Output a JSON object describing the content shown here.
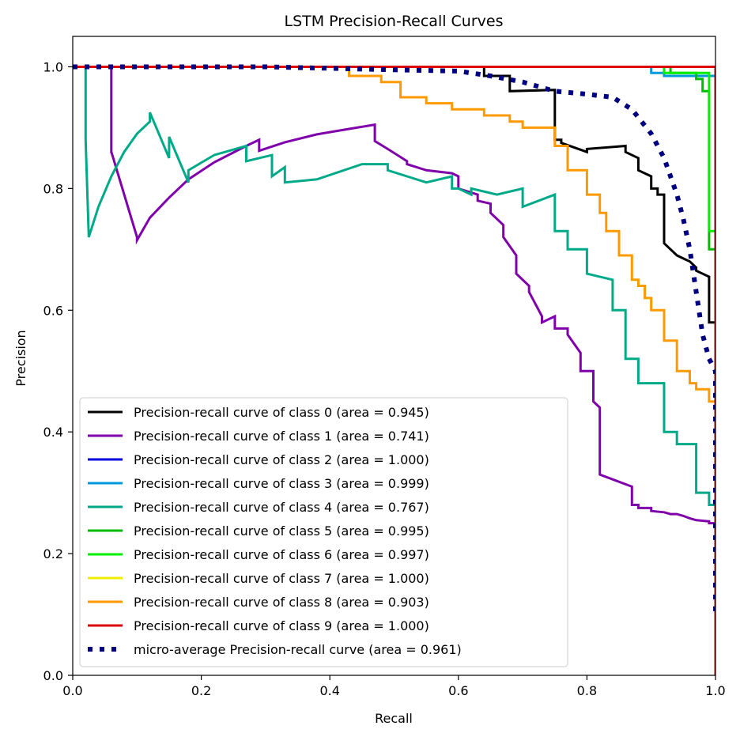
{
  "chart_data": {
    "type": "line",
    "title": "LSTM Precision-Recall Curves",
    "xlabel": "Recall",
    "ylabel": "Precision",
    "xlim": [
      0.0,
      1.0
    ],
    "ylim": [
      0.0,
      1.05
    ],
    "xticks": [
      0.0,
      0.2,
      0.4,
      0.6,
      0.8,
      1.0
    ],
    "xtick_labels": [
      "0.0",
      "0.2",
      "0.4",
      "0.6",
      "0.8",
      "1.0"
    ],
    "yticks": [
      0.0,
      0.2,
      0.4,
      0.6,
      0.8,
      1.0
    ],
    "ytick_labels": [
      "0.0",
      "0.2",
      "0.4",
      "0.6",
      "0.8",
      "1.0"
    ],
    "grid": false,
    "legend_position": "lower-left",
    "series": [
      {
        "name": "Precision-recall curve of class 0 (area = 0.945)",
        "color": "#000000",
        "style": "solid",
        "x": [
          0.0,
          0.64,
          0.64,
          0.68,
          0.68,
          0.75,
          0.75,
          0.76,
          0.76,
          0.8,
          0.8,
          0.86,
          0.86,
          0.88,
          0.88,
          0.9,
          0.9,
          0.91,
          0.91,
          0.92,
          0.92,
          0.93,
          0.94,
          0.95,
          0.96,
          0.97,
          0.97,
          0.99,
          0.99,
          1.0,
          1.0
        ],
        "y": [
          1.0,
          1.0,
          0.985,
          0.985,
          0.96,
          0.962,
          0.88,
          0.88,
          0.875,
          0.86,
          0.865,
          0.87,
          0.86,
          0.85,
          0.83,
          0.82,
          0.8,
          0.8,
          0.79,
          0.79,
          0.71,
          0.7,
          0.69,
          0.685,
          0.68,
          0.67,
          0.665,
          0.655,
          0.58,
          0.58,
          0.0
        ]
      },
      {
        "name": "Precision-recall curve of class 1 (area = 0.741)",
        "color": "#7f00aa",
        "style": "solid",
        "x": [
          0.0,
          0.06,
          0.06,
          0.0601,
          0.1,
          0.1,
          0.12,
          0.15,
          0.18,
          0.22,
          0.27,
          0.29,
          0.29,
          0.33,
          0.38,
          0.43,
          0.47,
          0.47,
          0.49,
          0.52,
          0.52,
          0.55,
          0.59,
          0.6,
          0.6,
          0.63,
          0.63,
          0.65,
          0.65,
          0.67,
          0.67,
          0.69,
          0.69,
          0.71,
          0.71,
          0.73,
          0.73,
          0.75,
          0.75,
          0.77,
          0.77,
          0.79,
          0.79,
          0.81,
          0.81,
          0.82,
          0.82,
          0.87,
          0.87,
          0.88,
          0.88,
          0.9,
          0.9,
          0.92,
          0.93,
          0.94,
          0.95,
          0.96,
          0.97,
          0.99,
          0.99,
          1.0,
          1.0
        ],
        "y": [
          1.0,
          1.0,
          0.86,
          0.86,
          0.72,
          0.715,
          0.752,
          0.785,
          0.815,
          0.843,
          0.87,
          0.88,
          0.862,
          0.876,
          0.889,
          0.898,
          0.905,
          0.878,
          0.865,
          0.845,
          0.84,
          0.83,
          0.825,
          0.82,
          0.8,
          0.79,
          0.78,
          0.775,
          0.76,
          0.74,
          0.72,
          0.69,
          0.66,
          0.64,
          0.63,
          0.59,
          0.58,
          0.59,
          0.57,
          0.57,
          0.56,
          0.53,
          0.5,
          0.5,
          0.45,
          0.44,
          0.33,
          0.31,
          0.28,
          0.28,
          0.275,
          0.275,
          0.27,
          0.268,
          0.265,
          0.265,
          0.262,
          0.258,
          0.255,
          0.253,
          0.25,
          0.25,
          0.0
        ]
      },
      {
        "name": "Precision-recall curve of class 2 (area = 1.000)",
        "color": "#0000dd",
        "style": "solid",
        "x": [
          0.0,
          1.0,
          1.0
        ],
        "y": [
          1.0,
          1.0,
          0.0
        ]
      },
      {
        "name": "Precision-recall curve of class 3 (area = 0.999)",
        "color": "#0099dd",
        "style": "solid",
        "x": [
          0.0,
          0.9,
          0.9,
          0.92,
          0.92,
          1.0,
          1.0
        ],
        "y": [
          1.0,
          1.0,
          0.99,
          0.99,
          0.985,
          0.985,
          0.0
        ]
      },
      {
        "name": "Precision-recall curve of class 4 (area = 0.767)",
        "color": "#00aa88",
        "style": "solid",
        "x": [
          0.0,
          0.02,
          0.02,
          0.025,
          0.04,
          0.06,
          0.08,
          0.1,
          0.12,
          0.12,
          0.15,
          0.15,
          0.18,
          0.18,
          0.22,
          0.27,
          0.27,
          0.29,
          0.29,
          0.31,
          0.31,
          0.33,
          0.33,
          0.38,
          0.45,
          0.49,
          0.49,
          0.52,
          0.52,
          0.55,
          0.55,
          0.59,
          0.59,
          0.6,
          0.6,
          0.62,
          0.62,
          0.66,
          0.66,
          0.7,
          0.7,
          0.75,
          0.75,
          0.77,
          0.77,
          0.8,
          0.8,
          0.84,
          0.84,
          0.86,
          0.86,
          0.88,
          0.88,
          0.92,
          0.92,
          0.94,
          0.94,
          0.97,
          0.97,
          0.99,
          0.99,
          1.0,
          1.0
        ],
        "y": [
          1.0,
          1.0,
          0.88,
          0.72,
          0.77,
          0.82,
          0.86,
          0.89,
          0.91,
          0.925,
          0.85,
          0.885,
          0.81,
          0.83,
          0.855,
          0.87,
          0.845,
          0.85,
          0.85,
          0.855,
          0.82,
          0.835,
          0.81,
          0.815,
          0.84,
          0.84,
          0.83,
          0.82,
          0.82,
          0.81,
          0.81,
          0.82,
          0.8,
          0.8,
          0.8,
          0.79,
          0.8,
          0.79,
          0.79,
          0.8,
          0.77,
          0.79,
          0.73,
          0.73,
          0.7,
          0.7,
          0.66,
          0.65,
          0.6,
          0.6,
          0.52,
          0.52,
          0.48,
          0.48,
          0.4,
          0.4,
          0.38,
          0.38,
          0.3,
          0.3,
          0.28,
          0.28,
          0.0
        ]
      },
      {
        "name": "Precision-recall curve of class 5 (area = 0.995)",
        "color": "#00bb00",
        "style": "solid",
        "x": [
          0.0,
          0.93,
          0.93,
          0.97,
          0.97,
          0.98,
          0.98,
          0.99,
          0.99,
          1.0,
          1.0
        ],
        "y": [
          1.0,
          1.0,
          0.99,
          0.99,
          0.98,
          0.98,
          0.96,
          0.96,
          0.7,
          0.7,
          0.0
        ]
      },
      {
        "name": "Precision-recall curve of class 6 (area = 0.997)",
        "color": "#00ee00",
        "style": "solid",
        "x": [
          0.0,
          0.92,
          0.92,
          0.99,
          0.99,
          1.0,
          1.0
        ],
        "y": [
          1.0,
          1.0,
          0.99,
          0.99,
          0.73,
          0.73,
          0.0
        ]
      },
      {
        "name": "Precision-recall curve of class 7 (area = 1.000)",
        "color": "#eeee00",
        "style": "solid",
        "x": [
          0.0,
          1.0,
          1.0
        ],
        "y": [
          1.0,
          1.0,
          0.0
        ]
      },
      {
        "name": "Precision-recall curve of class 8 (area = 0.903)",
        "color": "#ff9900",
        "style": "solid",
        "x": [
          0.0,
          0.43,
          0.43,
          0.48,
          0.48,
          0.51,
          0.51,
          0.55,
          0.55,
          0.59,
          0.59,
          0.64,
          0.64,
          0.68,
          0.68,
          0.7,
          0.7,
          0.75,
          0.75,
          0.77,
          0.77,
          0.8,
          0.8,
          0.82,
          0.82,
          0.83,
          0.83,
          0.85,
          0.85,
          0.87,
          0.87,
          0.88,
          0.88,
          0.89,
          0.89,
          0.9,
          0.9,
          0.92,
          0.92,
          0.94,
          0.94,
          0.96,
          0.96,
          0.97,
          0.97,
          0.99,
          0.99,
          1.0,
          1.0
        ],
        "y": [
          1.0,
          1.0,
          0.985,
          0.985,
          0.975,
          0.975,
          0.95,
          0.95,
          0.94,
          0.94,
          0.93,
          0.93,
          0.92,
          0.92,
          0.91,
          0.91,
          0.9,
          0.9,
          0.87,
          0.87,
          0.83,
          0.83,
          0.79,
          0.79,
          0.76,
          0.76,
          0.73,
          0.73,
          0.69,
          0.69,
          0.65,
          0.65,
          0.64,
          0.64,
          0.62,
          0.62,
          0.6,
          0.6,
          0.55,
          0.55,
          0.5,
          0.5,
          0.48,
          0.48,
          0.47,
          0.47,
          0.45,
          0.45,
          0.0
        ]
      },
      {
        "name": "Precision-recall curve of class 9 (area = 1.000)",
        "color": "#dd0000",
        "style": "solid",
        "x": [
          0.0,
          1.0,
          1.0
        ],
        "y": [
          1.0,
          1.0,
          0.0
        ]
      },
      {
        "name": "micro-average Precision-recall curve (area = 0.961)",
        "color": "#000080",
        "style": "dotted",
        "x": [
          0.0,
          0.3,
          0.5,
          0.6,
          0.65,
          0.7,
          0.75,
          0.8,
          0.84,
          0.87,
          0.9,
          0.92,
          0.94,
          0.95,
          0.96,
          0.97,
          0.98,
          0.99,
          1.0,
          1.0
        ],
        "y": [
          1.0,
          1.0,
          0.995,
          0.993,
          0.985,
          0.975,
          0.96,
          0.955,
          0.95,
          0.93,
          0.89,
          0.85,
          0.79,
          0.75,
          0.7,
          0.63,
          0.56,
          0.52,
          0.5,
          0.1
        ]
      }
    ]
  }
}
